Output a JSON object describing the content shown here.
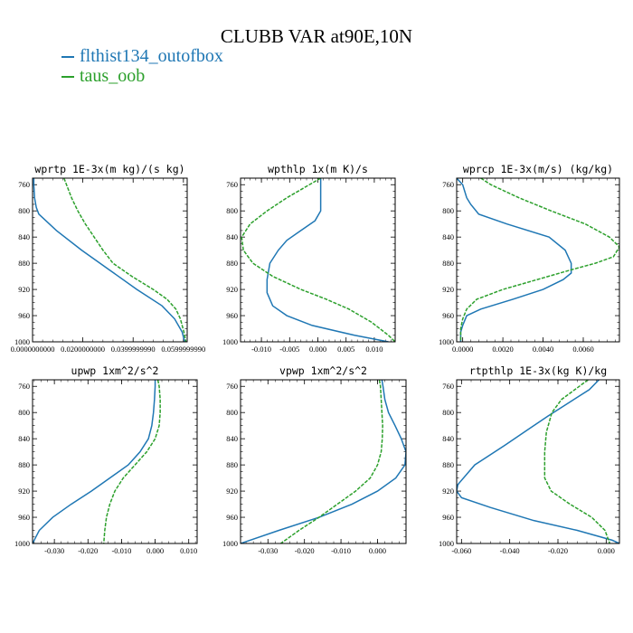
{
  "title": "CLUBB VAR at90E,10N",
  "legend": [
    {
      "name": "flthist134_outofbox",
      "color": "#1f77b4",
      "dash": "solid"
    },
    {
      "name": "taus_oob",
      "color": "#2ca02c",
      "dash": "dashed"
    }
  ],
  "chart_data": [
    {
      "type": "line",
      "title": "wprtp  1E-3x(m kg)/(s kg)",
      "xlim": [
        0.0,
        0.0615
      ],
      "ylim": [
        1000,
        750
      ],
      "xticks": [
        0.0,
        0.02,
        0.04,
        0.06
      ],
      "xticklabels": [
        "0.0000000000",
        "0.0200000000",
        "0.0399999990",
        "0.0599999990"
      ],
      "yticks": [
        760,
        800,
        840,
        880,
        920,
        960,
        1000
      ],
      "series": [
        {
          "name": "flthist134_outofbox",
          "y": [
            750,
            760,
            780,
            795,
            805,
            830,
            860,
            890,
            920,
            945,
            965,
            985,
            1000
          ],
          "x": [
            0.0005,
            0.0005,
            0.0008,
            0.0015,
            0.0025,
            0.0095,
            0.0195,
            0.0305,
            0.0415,
            0.0515,
            0.0565,
            0.0595,
            0.0605
          ]
        },
        {
          "name": "taus_oob",
          "y": [
            750,
            760,
            780,
            800,
            820,
            840,
            860,
            880,
            900,
            920,
            935,
            950,
            965,
            985,
            1000
          ],
          "x": [
            0.0125,
            0.0135,
            0.0155,
            0.018,
            0.021,
            0.0245,
            0.028,
            0.032,
            0.0395,
            0.048,
            0.0535,
            0.057,
            0.0588,
            0.0602,
            0.061
          ]
        }
      ]
    },
    {
      "type": "line",
      "title": "wpthlp  1x(m K)/s",
      "xlim": [
        -0.0137,
        0.0137
      ],
      "ylim": [
        1000,
        750
      ],
      "xticks": [
        -0.01,
        -0.005,
        0.0,
        0.005,
        0.01
      ],
      "xticklabels": [
        "-0.010",
        "-0.005",
        "0.000",
        "0.005",
        "0.010"
      ],
      "yticks": [
        760,
        800,
        840,
        880,
        920,
        960,
        1000
      ],
      "series": [
        {
          "name": "flthist134_outofbox",
          "y": [
            750,
            760,
            780,
            800,
            815,
            830,
            845,
            860,
            880,
            905,
            925,
            945,
            960,
            975,
            990,
            1000
          ],
          "x": [
            0.0005,
            0.0005,
            0.0005,
            0.0005,
            -0.0005,
            -0.003,
            -0.0055,
            -0.007,
            -0.0085,
            -0.009,
            -0.009,
            -0.008,
            -0.0055,
            -0.001,
            0.0065,
            0.0125
          ]
        },
        {
          "name": "taus_oob",
          "y": [
            750,
            760,
            780,
            800,
            820,
            840,
            860,
            880,
            900,
            920,
            935,
            950,
            970,
            990,
            1000
          ],
          "x": [
            0.0005,
            -0.0015,
            -0.0055,
            -0.009,
            -0.012,
            -0.0135,
            -0.0132,
            -0.0115,
            -0.008,
            -0.003,
            0.0015,
            0.0055,
            0.0095,
            0.0125,
            0.0137
          ]
        }
      ]
    },
    {
      "type": "line",
      "title": "wprcp  1E-3x(m/s) (kg/kg)",
      "xlim": [
        -0.0003,
        0.0078
      ],
      "ylim": [
        1000,
        750
      ],
      "xticks": [
        0.0,
        0.002,
        0.004,
        0.006
      ],
      "xticklabels": [
        "0.0000",
        "0.0020",
        "0.0040",
        "0.0060"
      ],
      "yticks": [
        760,
        800,
        840,
        880,
        920,
        960,
        1000
      ],
      "series": [
        {
          "name": "flthist134_outofbox",
          "y": [
            750,
            760,
            780,
            790,
            805,
            820,
            840,
            860,
            880,
            895,
            905,
            920,
            935,
            950,
            960,
            975,
            985,
            1000
          ],
          "x": [
            -0.0003,
            0.0,
            0.0002,
            0.0004,
            0.0008,
            0.0022,
            0.0043,
            0.0051,
            0.0054,
            0.0054,
            0.005,
            0.004,
            0.0025,
            0.0009,
            0.0002,
            0.0,
            -0.0001,
            -0.0001
          ]
        },
        {
          "name": "taus_oob",
          "y": [
            750,
            760,
            780,
            800,
            820,
            840,
            855,
            870,
            880,
            890,
            905,
            920,
            935,
            950,
            965,
            980,
            1000
          ],
          "x": [
            0.0009,
            0.0014,
            0.0028,
            0.0044,
            0.0061,
            0.0073,
            0.0078,
            0.0075,
            0.0066,
            0.0054,
            0.0037,
            0.002,
            0.0007,
            0.0002,
            0.0,
            -0.0001,
            -0.0001
          ]
        }
      ]
    },
    {
      "type": "line",
      "title": "upwp  1xm^2/s^2",
      "xlim": [
        -0.0365,
        0.0125
      ],
      "ylim": [
        1000,
        750
      ],
      "xticks": [
        -0.03,
        -0.02,
        -0.01,
        0.0,
        0.01
      ],
      "xticklabels": [
        "-0.030",
        "-0.020",
        "-0.010",
        "0.000",
        "0.010"
      ],
      "yticks": [
        760,
        800,
        840,
        880,
        920,
        960,
        1000
      ],
      "series": [
        {
          "name": "flthist134_outofbox",
          "y": [
            750,
            760,
            780,
            800,
            820,
            840,
            860,
            880,
            900,
            920,
            940,
            960,
            980,
            1000
          ],
          "x": [
            0.0,
            0.0,
            -0.0002,
            -0.0005,
            -0.001,
            -0.002,
            -0.0045,
            -0.008,
            -0.0135,
            -0.019,
            -0.025,
            -0.0305,
            -0.0345,
            -0.0365
          ]
        },
        {
          "name": "taus_oob",
          "y": [
            750,
            760,
            780,
            800,
            820,
            840,
            860,
            880,
            900,
            920,
            940,
            960,
            980,
            1000
          ],
          "x": [
            0.0008,
            0.0012,
            0.0015,
            0.0015,
            0.0012,
            0.0,
            -0.0025,
            -0.006,
            -0.0095,
            -0.012,
            -0.0135,
            -0.0145,
            -0.015,
            -0.0153
          ]
        }
      ]
    },
    {
      "type": "line",
      "title": "vpwp  1xm^2/s^2",
      "xlim": [
        -0.0375,
        0.0078
      ],
      "ylim": [
        1000,
        750
      ],
      "xticks": [
        -0.03,
        -0.02,
        -0.01,
        0.0
      ],
      "xticklabels": [
        "-0.030",
        "-0.020",
        "-0.010",
        "0.000"
      ],
      "yticks": [
        760,
        800,
        840,
        880,
        920,
        960,
        1000
      ],
      "series": [
        {
          "name": "flthist134_outofbox",
          "y": [
            750,
            760,
            780,
            800,
            820,
            840,
            860,
            880,
            900,
            920,
            940,
            960,
            980,
            1000
          ],
          "x": [
            0.0012,
            0.0015,
            0.002,
            0.003,
            0.0048,
            0.0065,
            0.0078,
            0.0075,
            0.005,
            0.0,
            -0.007,
            -0.016,
            -0.027,
            -0.0375
          ]
        },
        {
          "name": "taus_oob",
          "y": [
            750,
            760,
            780,
            800,
            820,
            840,
            860,
            880,
            900,
            920,
            940,
            960,
            980,
            1000
          ],
          "x": [
            0.0005,
            0.0008,
            0.001,
            0.0012,
            0.0014,
            0.0013,
            0.001,
            0.0,
            -0.002,
            -0.006,
            -0.011,
            -0.016,
            -0.0215,
            -0.0265
          ]
        }
      ]
    },
    {
      "type": "line",
      "title": "rtpthlp  1E-3x(kg K)/kg",
      "xlim": [
        -0.062,
        0.0055
      ],
      "ylim": [
        1000,
        750
      ],
      "xticks": [
        -0.06,
        -0.04,
        -0.02,
        0.0
      ],
      "xticklabels": [
        "-0.060",
        "-0.040",
        "-0.020",
        "0.000"
      ],
      "yticks": [
        760,
        800,
        840,
        880,
        920,
        960,
        1000
      ],
      "series": [
        {
          "name": "flthist134_outofbox",
          "y": [
            750,
            765,
            785,
            805,
            825,
            850,
            880,
            910,
            920,
            930,
            945,
            965,
            980,
            995,
            1000
          ],
          "x": [
            -0.003,
            -0.007,
            -0.0155,
            -0.024,
            -0.032,
            -0.042,
            -0.0545,
            -0.0615,
            -0.062,
            -0.06,
            -0.048,
            -0.03,
            -0.012,
            0.0025,
            0.0055
          ]
        },
        {
          "name": "taus_oob",
          "y": [
            750,
            765,
            780,
            800,
            830,
            860,
            880,
            900,
            920,
            940,
            960,
            980,
            1000
          ],
          "x": [
            -0.0075,
            -0.013,
            -0.0185,
            -0.0225,
            -0.0248,
            -0.0255,
            -0.0255,
            -0.0255,
            -0.0228,
            -0.015,
            -0.006,
            -0.0005,
            0.0015
          ]
        }
      ]
    }
  ]
}
